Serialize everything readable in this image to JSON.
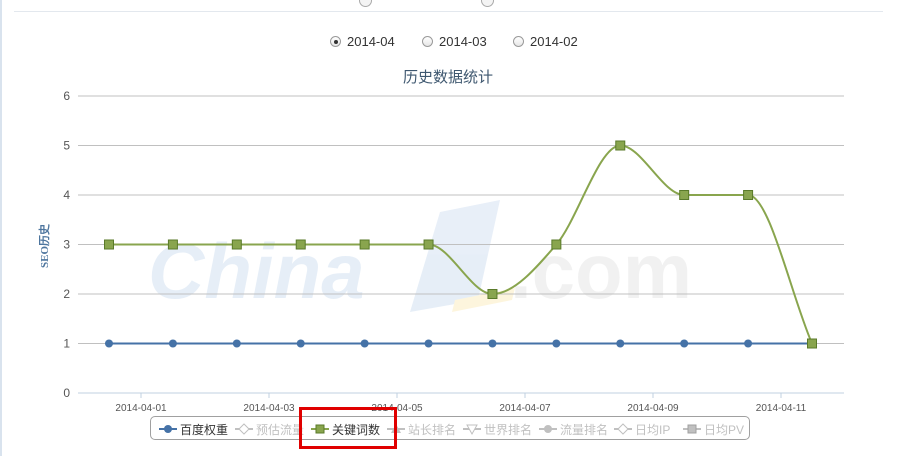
{
  "period_options": [
    {
      "label": "2014-04",
      "checked": true
    },
    {
      "label": "2014-03",
      "checked": false
    },
    {
      "label": "2014-02",
      "checked": false
    }
  ],
  "chart_data": {
    "type": "line",
    "title": "历史数据统计",
    "ylabel": "SEO历史",
    "ylim": [
      0,
      6
    ],
    "y_ticks": [
      "0",
      "1",
      "2",
      "3",
      "4",
      "5",
      "6"
    ],
    "x_range": [
      "2014-04-01",
      "2014-04-12"
    ],
    "x_tick_labels": [
      "2014-04-01",
      "2014-04-03",
      "2014-04-05",
      "2014-04-07",
      "2014-04-09",
      "2014-04-11"
    ],
    "x": [
      "2014-04-01",
      "2014-04-02",
      "2014-04-03",
      "2014-04-04",
      "2014-04-05",
      "2014-04-06",
      "2014-04-07",
      "2014-04-08",
      "2014-04-09",
      "2014-04-10",
      "2014-04-11",
      "2014-04-12"
    ],
    "grid": true,
    "legend_position": "bottom",
    "watermark": "China Z .com",
    "series": [
      {
        "name": "百度权重",
        "color": "#4572a7",
        "marker": "circle",
        "visible": true,
        "values": [
          1,
          1,
          1,
          1,
          1,
          1,
          1,
          1,
          1,
          1,
          1,
          1
        ]
      },
      {
        "name": "预估流量",
        "color": "#c0c0c0",
        "marker": "diamond",
        "visible": false
      },
      {
        "name": "关键词数",
        "color": "#89a54e",
        "marker": "square",
        "visible": true,
        "values": [
          3,
          3,
          3,
          3,
          3,
          3,
          2,
          3,
          5,
          4,
          4,
          1
        ]
      },
      {
        "name": "站长排名",
        "color": "#c0c0c0",
        "marker": "triangle",
        "visible": false
      },
      {
        "name": "世界排名",
        "color": "#c0c0c0",
        "marker": "triangle-down",
        "visible": false
      },
      {
        "name": "流量排名",
        "color": "#c0c0c0",
        "marker": "circle",
        "visible": false
      },
      {
        "name": "日均IP",
        "color": "#c0c0c0",
        "marker": "diamond",
        "visible": false
      },
      {
        "name": "日均PV",
        "color": "#c0c0c0",
        "marker": "square",
        "visible": false
      }
    ]
  },
  "colors": {
    "highlight": "#e00000",
    "grid": "#c0c0c0",
    "axis_text": "#555555",
    "title_text": "#3e576f"
  }
}
